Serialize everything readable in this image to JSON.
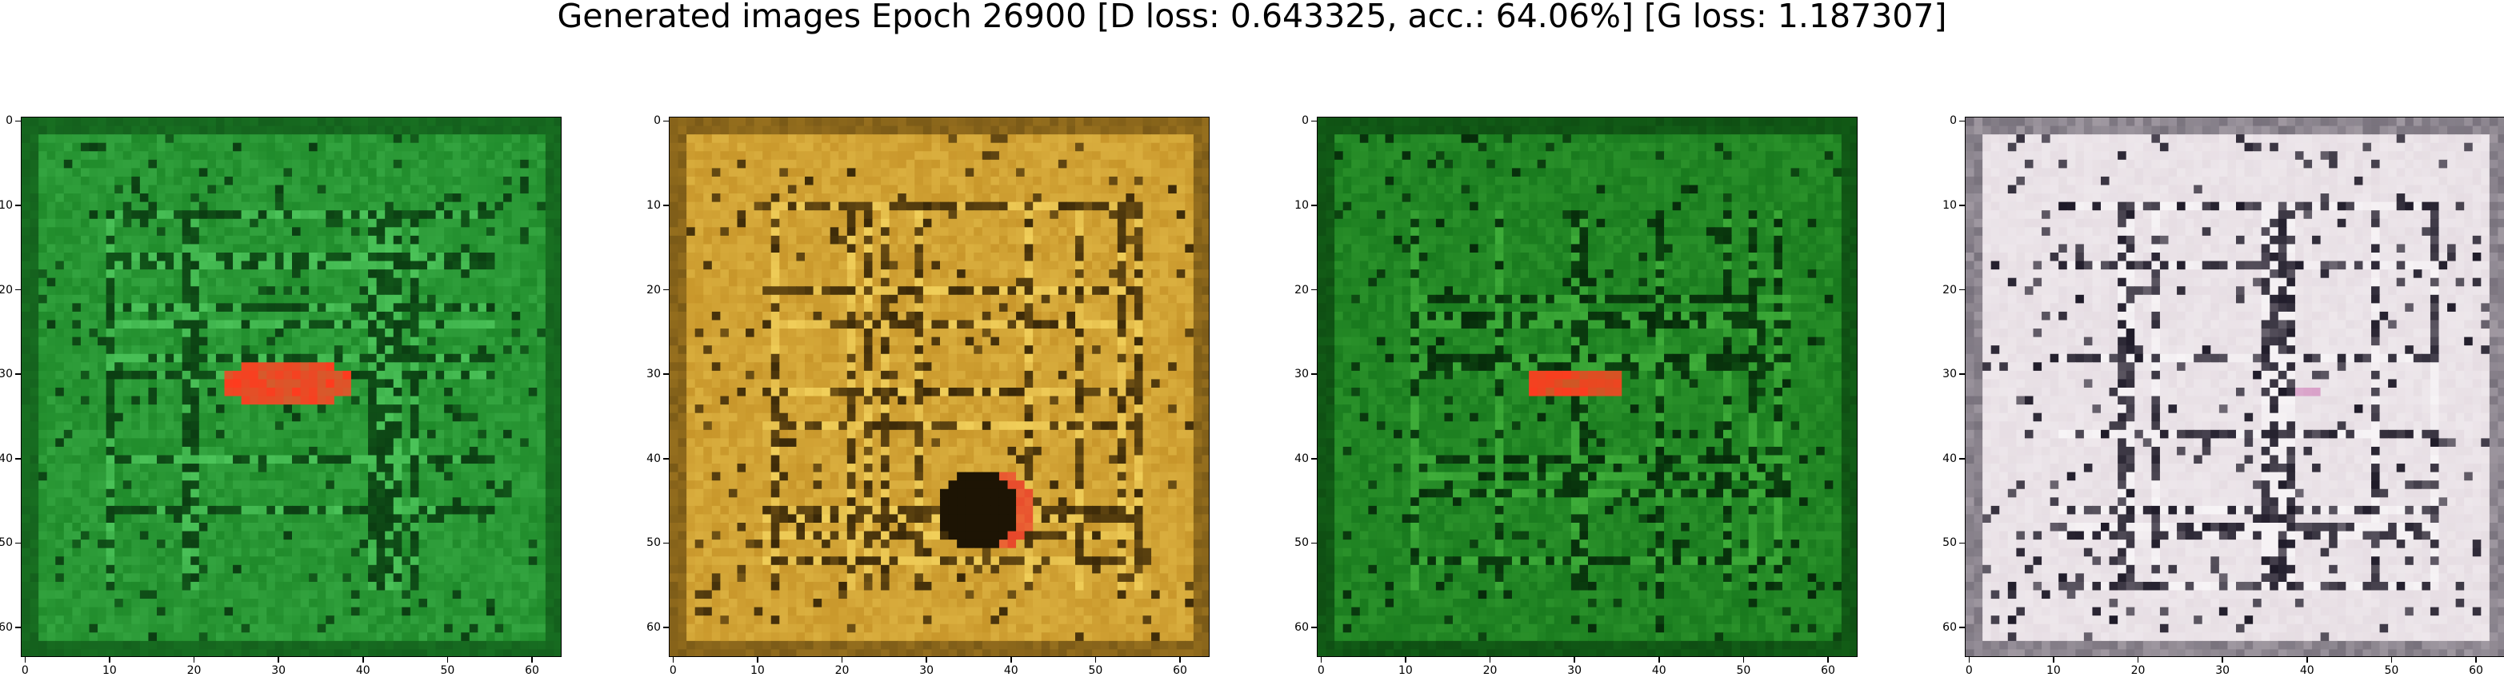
{
  "title": "Generated images Epoch 26900 [D loss: 0.643325, acc.: 64.06%] [G loss: 1.187307]",
  "axes": {
    "xticks": [
      "0",
      "10",
      "20",
      "30",
      "40",
      "50",
      "60"
    ],
    "yticks": [
      "0",
      "10",
      "20",
      "30",
      "40",
      "50",
      "60"
    ],
    "xlim": [
      -0.5,
      63.5
    ],
    "ylim": [
      63.5,
      -0.5
    ]
  },
  "images": [
    {
      "name": "generated-image-1",
      "description_palette": {
        "base": "#1f8a2a",
        "dark": "#0b3d12",
        "light": "#4cc45a",
        "accent": "#ff3a1e"
      }
    },
    {
      "name": "generated-image-2",
      "description_palette": {
        "base": "#c8962a",
        "dark": "#3a2808",
        "light": "#f1cf5a",
        "accent": "#e8452a"
      }
    },
    {
      "name": "generated-image-3",
      "description_palette": {
        "base": "#197a1e",
        "dark": "#062a0a",
        "light": "#3fae3a",
        "accent": "#ff3a1e"
      }
    },
    {
      "name": "generated-image-4",
      "description_palette": {
        "base": "#e6dde3",
        "dark": "#1e1a28",
        "light": "#f7f4f6",
        "accent": "#d8a0c8"
      }
    }
  ]
}
